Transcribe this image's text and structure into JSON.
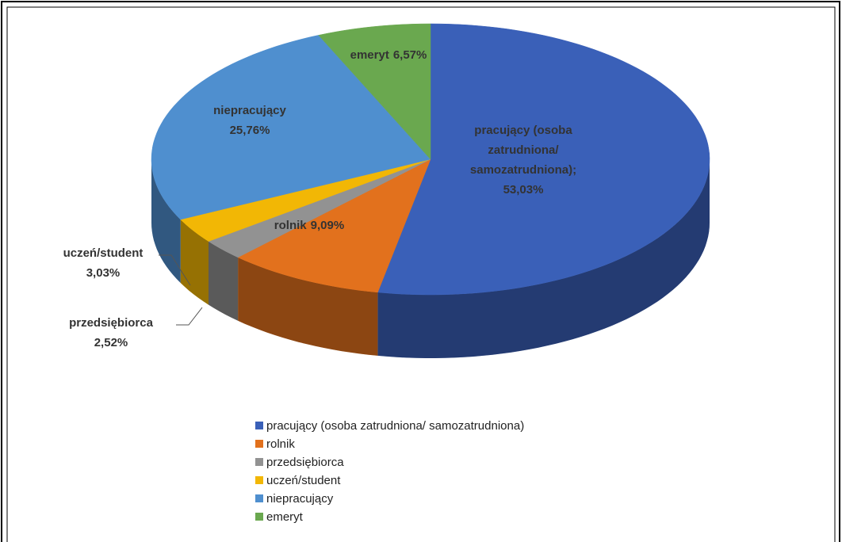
{
  "chart_data": {
    "type": "pie3d",
    "categories": [
      "pracujący (osoba zatrudniona/ samozatrudniona)",
      "rolnik",
      "przedsiębiorca",
      "uczeń/student",
      "niepracujący",
      "emeryt"
    ],
    "values": [
      53.03,
      9.09,
      2.52,
      3.03,
      25.76,
      6.57
    ],
    "value_labels": [
      "53,03%",
      "9,09%",
      "2,52%",
      "3,03%",
      "25,76%",
      "6,57%"
    ],
    "label_names": [
      "pracujący (osoba zatrudniona/ samozatrudniona);",
      "rolnik",
      "przedsiębiorca",
      "uczeń/student",
      "niepracujący",
      "emeryt"
    ],
    "colors": [
      "#3a60b8",
      "#e2711d",
      "#929292",
      "#f2b705",
      "#4f8fcf",
      "#6aa84f"
    ],
    "legend": "bottom"
  }
}
